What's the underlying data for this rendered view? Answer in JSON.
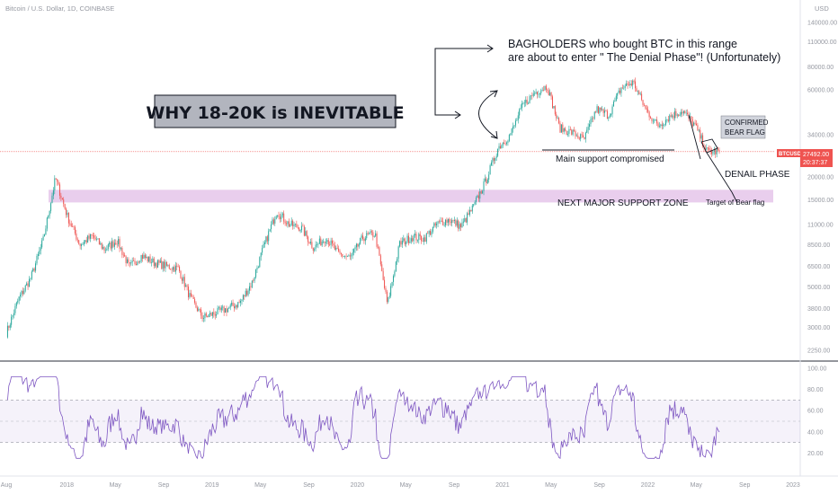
{
  "header": {
    "symbol": "Bitcoin / U.S. Dollar, 1D, COINBASE",
    "currency": "USD"
  },
  "price_badge": {
    "ticker": "BTCUSD",
    "price": "27492.00",
    "countdown": "20:37:37"
  },
  "annotations": {
    "title": "WHY 18-20K is INEVITABLE",
    "bagholders_line1": "BAGHOLDERS who bought BTC in this range",
    "bagholders_line2": "are about to enter \" The Denial Phase\"! (Unfortunately)",
    "main_support": "Main support compromised",
    "confirmed_line1": "CONFIRMED",
    "confirmed_line2": "BEAR FLAG",
    "denail": "DENAIL PHASE",
    "zone": "NEXT MAJOR SUPPORT ZONE",
    "target": "Target of Bear flag"
  },
  "colors": {
    "up": "#26a69a",
    "down": "#ef5350",
    "rsi": "#7e57c2",
    "zone": "#e1bee7",
    "price_line": "#ef5350"
  },
  "chart_data": [
    {
      "type": "candlestick",
      "scale": "log",
      "x_ticks": [
        "Aug",
        "2018",
        "May",
        "Sep",
        "2019",
        "May",
        "Sep",
        "2020",
        "May",
        "Sep",
        "2021",
        "May",
        "Sep",
        "2022",
        "May",
        "Sep",
        "2023"
      ],
      "y_ticks": [
        "140000.00",
        "110000.00",
        "80000.00",
        "60000.00",
        "34000.00",
        "27492.00",
        "20000.00",
        "15000.00",
        "11000.00",
        "8500.00",
        "6500.00",
        "5000.00",
        "3800.00",
        "3000.00",
        "2250.00"
      ],
      "last_price": 27492.0,
      "support_zone": [
        14500,
        17000
      ],
      "main_support_level": 29500,
      "path": [
        [
          "2017-08",
          2800
        ],
        [
          "2017-09",
          4300
        ],
        [
          "2017-10",
          5600
        ],
        [
          "2017-11",
          9000
        ],
        [
          "2017-12",
          19700
        ],
        [
          "2018-01",
          12000
        ],
        [
          "2018-02",
          8500
        ],
        [
          "2018-03",
          9500
        ],
        [
          "2018-04",
          8000
        ],
        [
          "2018-05",
          9000
        ],
        [
          "2018-06",
          6400
        ],
        [
          "2018-07",
          7400
        ],
        [
          "2018-08",
          6800
        ],
        [
          "2018-09",
          6500
        ],
        [
          "2018-10",
          6300
        ],
        [
          "2018-11",
          4300
        ],
        [
          "2018-12",
          3400
        ],
        [
          "2019-01",
          3600
        ],
        [
          "2019-02",
          3800
        ],
        [
          "2019-03",
          4100
        ],
        [
          "2019-04",
          5300
        ],
        [
          "2019-05",
          8500
        ],
        [
          "2019-06",
          13000
        ],
        [
          "2019-07",
          11000
        ],
        [
          "2019-08",
          10500
        ],
        [
          "2019-09",
          8200
        ],
        [
          "2019-10",
          9300
        ],
        [
          "2019-11",
          7600
        ],
        [
          "2019-12",
          7200
        ],
        [
          "2020-01",
          9300
        ],
        [
          "2020-02",
          9800
        ],
        [
          "2020-03",
          4000
        ],
        [
          "2020-04",
          8600
        ],
        [
          "2020-05",
          9400
        ],
        [
          "2020-06",
          9200
        ],
        [
          "2020-07",
          11000
        ],
        [
          "2020-08",
          11700
        ],
        [
          "2020-09",
          10700
        ],
        [
          "2020-10",
          13700
        ],
        [
          "2020-11",
          19000
        ],
        [
          "2020-12",
          28900
        ],
        [
          "2021-01",
          34000
        ],
        [
          "2021-02",
          49000
        ],
        [
          "2021-03",
          58000
        ],
        [
          "2021-04",
          63000
        ],
        [
          "2021-05",
          37000
        ],
        [
          "2021-06",
          35000
        ],
        [
          "2021-07",
          32000
        ],
        [
          "2021-08",
          47000
        ],
        [
          "2021-09",
          43500
        ],
        [
          "2021-10",
          61000
        ],
        [
          "2021-11",
          66000
        ],
        [
          "2021-12",
          47000
        ],
        [
          "2022-01",
          38000
        ],
        [
          "2022-02",
          43000
        ],
        [
          "2022-03",
          46000
        ],
        [
          "2022-04",
          38500
        ],
        [
          "2022-05",
          27500
        ],
        [
          "2022-06",
          27492
        ]
      ]
    },
    {
      "type": "line",
      "name": "RSI",
      "y_ticks": [
        "100.00",
        "80.00",
        "60.00",
        "40.00",
        "20.00"
      ],
      "bands": [
        30,
        50,
        70
      ],
      "ylim": [
        0,
        100
      ]
    }
  ]
}
